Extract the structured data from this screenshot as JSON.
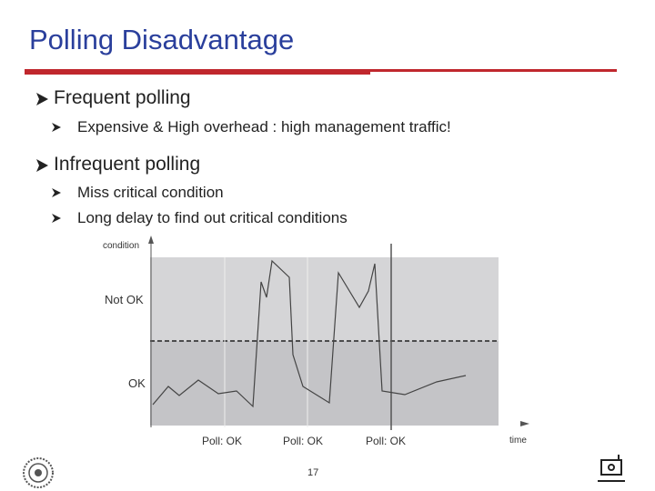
{
  "header": {
    "title": "Polling Disadvantage"
  },
  "bullets": [
    {
      "text": "Frequent polling",
      "sub": [
        "Expensive & High overhead : high management traffic!"
      ]
    },
    {
      "text": "Infrequent polling",
      "sub": [
        "Miss critical condition",
        "Long delay to find out critical conditions"
      ]
    }
  ],
  "figure": {
    "y_label": "condition",
    "levels": [
      "Not OK",
      "OK"
    ],
    "polls": [
      "Poll: OK",
      "Poll: OK",
      "Poll: OK"
    ],
    "x_label": "time"
  },
  "footer": {
    "page": "17"
  }
}
